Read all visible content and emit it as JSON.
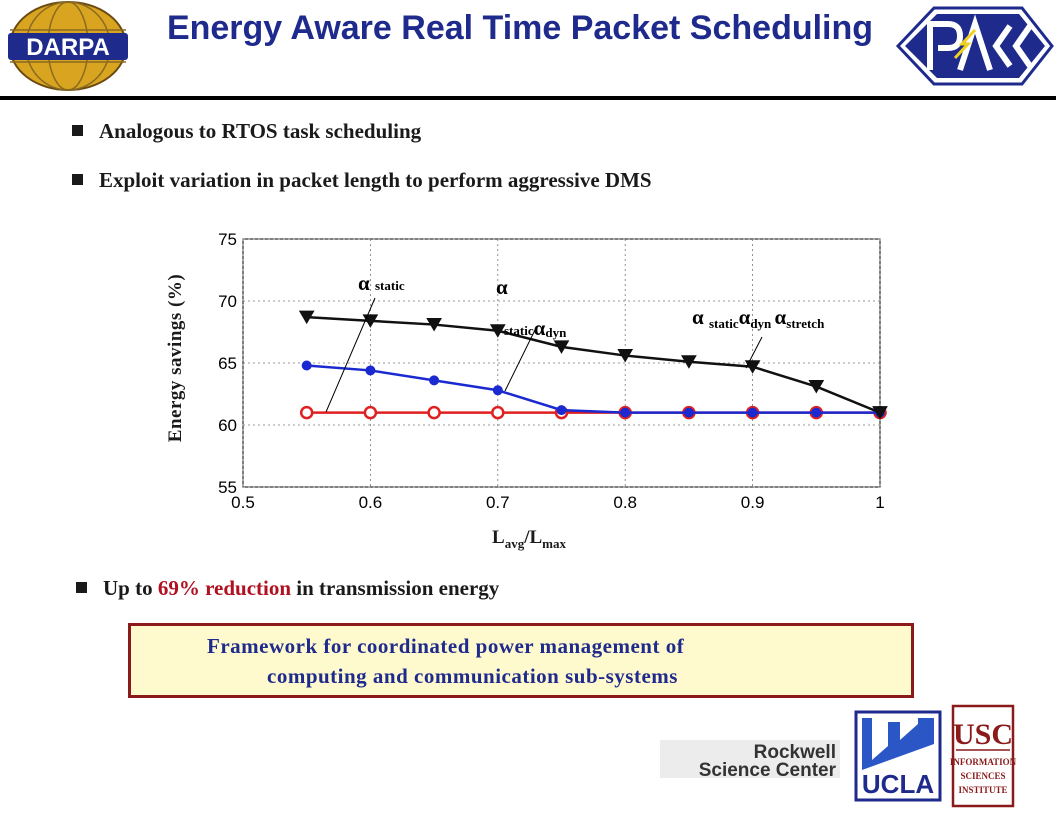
{
  "title": "Energy Aware Real Time Packet Scheduling",
  "logos": {
    "darpa": "DARPA",
    "rockwell_line1": "Rockwell",
    "rockwell_line2": "Science Center",
    "ucla": "UCLA",
    "usc": "USC",
    "usc_sub1": "INFORMATION",
    "usc_sub2": "SCIENCES",
    "usc_sub3": "INSTITUTE"
  },
  "bullets": [
    "Analogous to RTOS task scheduling",
    "Exploit variation in packet length to perform aggressive DMS"
  ],
  "reduction_bullet": {
    "pre": "Up to ",
    "highlight": "69% reduction",
    "post": " in transmission energy"
  },
  "framework_box": {
    "line1": "Framework for coordinated power management of",
    "line2": "computing and communication sub-systems"
  },
  "colors": {
    "title": "#1e2a8c",
    "highlight": "#b01020",
    "box_fill": "#fffacd",
    "box_border": "#8b1a1a",
    "series_static": "#e02020",
    "series_dyn": "#1a2ad0",
    "series_stretch": "#111111"
  },
  "chart_data": {
    "type": "line",
    "title": "",
    "ylabel": "Energy savings (%)",
    "xlabel_main": "L",
    "xlabel_sub1": "avg",
    "xlabel_mid": "/L",
    "xlabel_sub2": "max",
    "xlim": [
      0.5,
      1
    ],
    "ylim": [
      55,
      75
    ],
    "xticks": [
      "0.5",
      "0.6",
      "0.7",
      "0.8",
      "0.9",
      "1"
    ],
    "yticks": [
      "55",
      "60",
      "65",
      "70",
      "75"
    ],
    "x": [
      0.55,
      0.6,
      0.65,
      0.7,
      0.75,
      0.8,
      0.85,
      0.9,
      0.95,
      1.0
    ],
    "series": [
      {
        "values": [
          61,
          61,
          61,
          61,
          61,
          61,
          61,
          61,
          61,
          61
        ],
        "marker": "circle",
        "color": "#e02020"
      },
      {
        "values": [
          64.8,
          64.4,
          63.6,
          62.8,
          61.2,
          61,
          61,
          61,
          61,
          61
        ],
        "marker": "dot",
        "color": "#1a2ad0"
      },
      {
        "values": [
          68.7,
          68.4,
          68.1,
          67.6,
          66.3,
          65.6,
          65.1,
          64.7,
          63.1,
          61
        ],
        "marker": "triangle-down",
        "color": "#111111"
      }
    ],
    "annotations": [
      {
        "alpha": "α",
        "sub": "static"
      },
      {
        "alpha": "α",
        "sub1": "static",
        "alpha2": "α",
        "sub2": "dyn"
      },
      {
        "alpha": "α",
        "sub1": "static",
        "alpha2": "α",
        "sub2": "dyn",
        "alpha3": "α",
        "sub3": "stretch"
      }
    ]
  }
}
